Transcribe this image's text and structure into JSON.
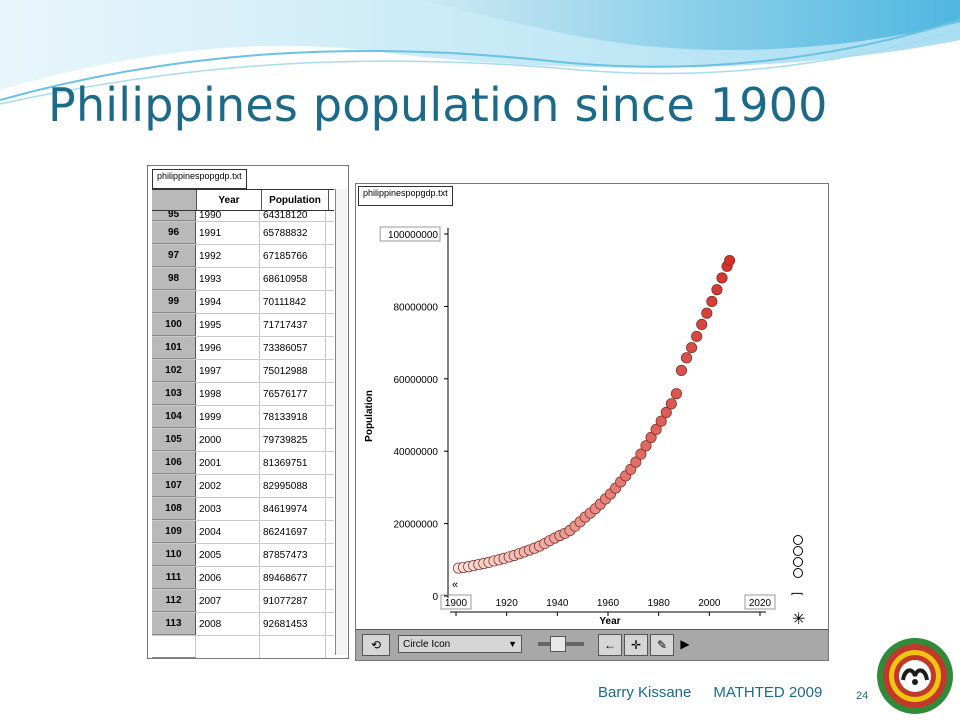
{
  "slide": {
    "title": "Philippines population since 1900",
    "footer_author": "Barry Kissane",
    "footer_event": "MATHTED 2009",
    "page_number": "24"
  },
  "table": {
    "tab_label": "philippinespopgdp.txt",
    "columns": [
      "",
      "Year",
      "Population"
    ],
    "partial_row": {
      "index": "95",
      "year": "1990",
      "population": "64318120"
    },
    "rows": [
      {
        "index": "96",
        "year": "1991",
        "population": "65788832"
      },
      {
        "index": "97",
        "year": "1992",
        "population": "67185766"
      },
      {
        "index": "98",
        "year": "1993",
        "population": "68610958"
      },
      {
        "index": "99",
        "year": "1994",
        "population": "70111842"
      },
      {
        "index": "100",
        "year": "1995",
        "population": "71717437"
      },
      {
        "index": "101",
        "year": "1996",
        "population": "73386057"
      },
      {
        "index": "102",
        "year": "1997",
        "population": "75012988"
      },
      {
        "index": "103",
        "year": "1998",
        "population": "76576177"
      },
      {
        "index": "104",
        "year": "1999",
        "population": "78133918"
      },
      {
        "index": "105",
        "year": "2000",
        "population": "79739825"
      },
      {
        "index": "106",
        "year": "2001",
        "population": "81369751"
      },
      {
        "index": "107",
        "year": "2002",
        "population": "82995088"
      },
      {
        "index": "108",
        "year": "2003",
        "population": "84619974"
      },
      {
        "index": "109",
        "year": "2004",
        "population": "86241697"
      },
      {
        "index": "110",
        "year": "2005",
        "population": "87857473"
      },
      {
        "index": "111",
        "year": "2006",
        "population": "89468677"
      },
      {
        "index": "112",
        "year": "2007",
        "population": "91077287"
      },
      {
        "index": "113",
        "year": "2008",
        "population": "92681453"
      }
    ]
  },
  "chart_panel": {
    "tab_label": "philippinespopgdp.txt",
    "plot_type_select": "Circle Icon",
    "colors": {
      "early": "#fbe3dc",
      "late": "#d1322a",
      "stroke": "#7a2a22"
    }
  },
  "chart_data": {
    "type": "scatter",
    "title": "",
    "xlabel": "Year",
    "ylabel": "Population",
    "xlim": [
      1900,
      2020
    ],
    "ylim": [
      0,
      100000000
    ],
    "x_ticks": [
      "1900",
      "1920",
      "1940",
      "1960",
      "1980",
      "2000",
      "2020"
    ],
    "y_ticks": [
      "0",
      "20000000",
      "40000000",
      "60000000",
      "80000000",
      "100000000"
    ],
    "grid": false,
    "series": [
      {
        "x": [
          1901,
          1903,
          1905,
          1907,
          1909,
          1911,
          1913,
          1915,
          1917,
          1919,
          1921,
          1923,
          1925,
          1927,
          1929,
          1931,
          1933,
          1935,
          1937,
          1939,
          1941,
          1943,
          1945,
          1947,
          1949,
          1951,
          1953,
          1955,
          1957,
          1959,
          1961,
          1963,
          1965,
          1967,
          1969,
          1971,
          1973,
          1975,
          1977,
          1979,
          1981,
          1983,
          1985,
          1987,
          1989,
          1991,
          1993,
          1995,
          1997,
          1999,
          2001,
          2003,
          2005,
          2007,
          2008
        ],
        "y": [
          7700000,
          7900000,
          8100000,
          8400000,
          8700000,
          9000000,
          9300000,
          9700000,
          10000000,
          10400000,
          10800000,
          11200000,
          11700000,
          12200000,
          12700000,
          13200000,
          13800000,
          14500000,
          15300000,
          16000000,
          16700000,
          17300000,
          18100000,
          19300000,
          20500000,
          21800000,
          22900000,
          24100000,
          25400000,
          26800000,
          28200000,
          29800000,
          31500000,
          33200000,
          35000000,
          37000000,
          39200000,
          41500000,
          43800000,
          46000000,
          48300000,
          50700000,
          53100000,
          55900000,
          62300000,
          65788832,
          68610958,
          71717437,
          75012988,
          78133918,
          81369751,
          84619974,
          87857473,
          91077287,
          92681453
        ]
      }
    ]
  }
}
